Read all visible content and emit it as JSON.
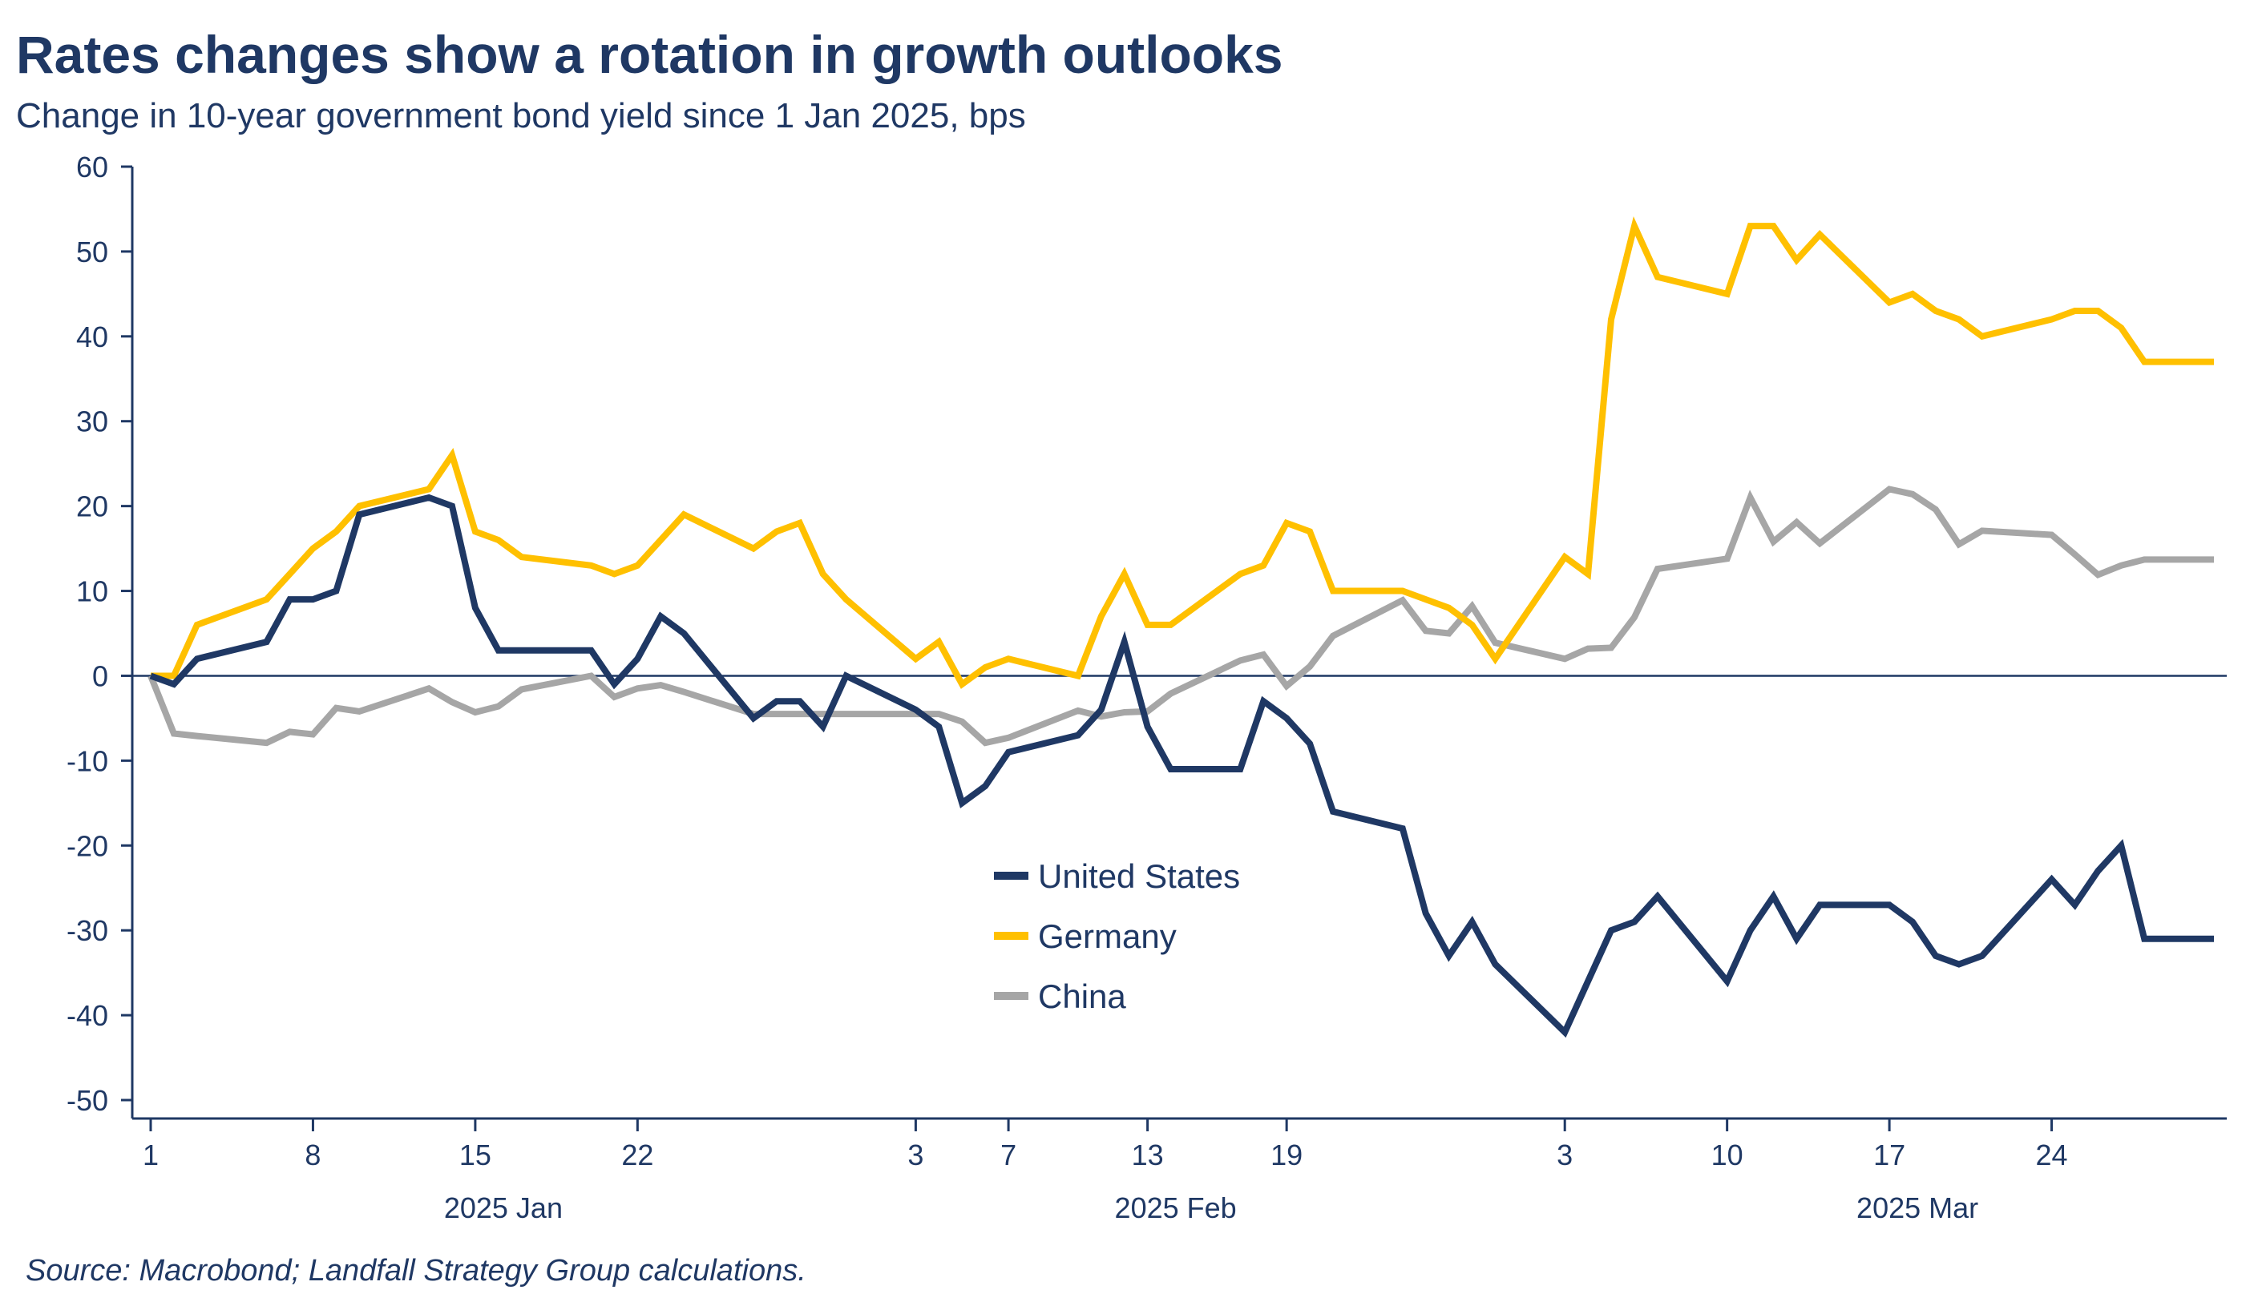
{
  "title": "Rates changes show a rotation in growth outlooks",
  "subtitle": "Change in 10-year government bond yield since 1 Jan 2025, bps",
  "source": "Source: Macrobond; Landfall Strategy Group calculations.",
  "colors": {
    "united_states": "#1f3864",
    "germany": "#ffc000",
    "china": "#a6a6a6",
    "text": "#1f3864",
    "axis": "#1f3864"
  },
  "chart_data": {
    "type": "line",
    "title": "Rates changes show a rotation in growth outlooks",
    "subtitle": "Change in 10-year government bond yield since 1 Jan 2025, bps",
    "ylim": [
      -50,
      60
    ],
    "yticks": [
      60,
      50,
      40,
      30,
      20,
      10,
      0,
      -10,
      -20,
      -30,
      -40,
      -50
    ],
    "xlim": [
      "2025-01-01",
      "2025-03-31"
    ],
    "xticks": [
      {
        "date": "2025-01-01",
        "label": "1"
      },
      {
        "date": "2025-01-08",
        "label": "8"
      },
      {
        "date": "2025-01-15",
        "label": "15"
      },
      {
        "date": "2025-01-22",
        "label": "22"
      },
      {
        "date": "2025-02-03",
        "label": "3"
      },
      {
        "date": "2025-02-07",
        "label": "7"
      },
      {
        "date": "2025-02-13",
        "label": "13"
      },
      {
        "date": "2025-02-19",
        "label": "19"
      },
      {
        "date": "2025-03-03",
        "label": "3"
      },
      {
        "date": "2025-03-10",
        "label": "10"
      },
      {
        "date": "2025-03-17",
        "label": "17"
      },
      {
        "date": "2025-03-24",
        "label": "24"
      }
    ],
    "month_labels": [
      {
        "date": "2025-01-15",
        "label": "2025 Jan"
      },
      {
        "date": "2025-02-13",
        "label": "2025 Feb"
      },
      {
        "date": "2025-03-17",
        "label": "2025 Mar"
      }
    ],
    "zero_line": true,
    "grid": false,
    "legend_position": "center-bottom",
    "x": [
      "2025-01-01",
      "2025-01-02",
      "2025-01-03",
      "2025-01-06",
      "2025-01-07",
      "2025-01-08",
      "2025-01-09",
      "2025-01-10",
      "2025-01-13",
      "2025-01-14",
      "2025-01-15",
      "2025-01-16",
      "2025-01-17",
      "2025-01-20",
      "2025-01-21",
      "2025-01-22",
      "2025-01-23",
      "2025-01-24",
      "2025-01-27",
      "2025-01-28",
      "2025-01-29",
      "2025-01-30",
      "2025-01-31",
      "2025-02-03",
      "2025-02-04",
      "2025-02-05",
      "2025-02-06",
      "2025-02-07",
      "2025-02-10",
      "2025-02-11",
      "2025-02-12",
      "2025-02-13",
      "2025-02-14",
      "2025-02-17",
      "2025-02-18",
      "2025-02-19",
      "2025-02-20",
      "2025-02-21",
      "2025-02-24",
      "2025-02-25",
      "2025-02-26",
      "2025-02-27",
      "2025-02-28",
      "2025-03-03",
      "2025-03-04",
      "2025-03-05",
      "2025-03-06",
      "2025-03-07",
      "2025-03-10",
      "2025-03-11",
      "2025-03-12",
      "2025-03-13",
      "2025-03-14",
      "2025-03-17",
      "2025-03-18",
      "2025-03-19",
      "2025-03-20",
      "2025-03-21",
      "2025-03-24",
      "2025-03-25",
      "2025-03-26",
      "2025-03-27",
      "2025-03-28",
      "2025-03-31"
    ],
    "series": [
      {
        "name": "United States",
        "color": "#1f3864",
        "values": [
          0,
          -1,
          2,
          4,
          9,
          9,
          10,
          19,
          21,
          20,
          8,
          3,
          3,
          3,
          -1,
          2,
          7,
          5,
          -5,
          -3,
          -3,
          -6,
          0,
          -4,
          -6,
          -15,
          -13,
          -9,
          -7,
          -4,
          4,
          -6,
          -11,
          -11,
          -3,
          -5,
          -8,
          -16,
          -18,
          -28,
          -33,
          -29,
          -34,
          -42,
          -36,
          -30,
          -29,
          -26,
          -36,
          -30,
          -26,
          -31,
          -27,
          -27,
          -29,
          -33,
          -34,
          -33,
          -24,
          -27,
          -23,
          -20,
          -31,
          -31
        ]
      },
      {
        "name": "Germany",
        "color": "#ffc000",
        "values": [
          0,
          0,
          6,
          9,
          12,
          15,
          17,
          20,
          22,
          26,
          17,
          16,
          14,
          13,
          12,
          13,
          16,
          19,
          15,
          17,
          18,
          12,
          9,
          2,
          4,
          -1,
          1,
          2,
          0,
          7,
          12,
          6,
          6,
          12,
          13,
          18,
          17,
          10,
          10,
          9,
          8,
          6,
          2,
          14,
          12,
          42,
          53,
          47,
          45,
          53,
          53,
          49,
          52,
          44,
          45,
          43,
          42,
          40,
          42,
          43,
          43,
          41,
          37,
          37
        ]
      },
      {
        "name": "China",
        "color": "#a6a6a6",
        "values": [
          0,
          -6.8,
          -7.1,
          -7.9,
          -6.6,
          -6.9,
          -3.8,
          -4.2,
          -1.5,
          -3.1,
          -4.3,
          -3.6,
          -1.6,
          0,
          -2.5,
          -1.5,
          -1.1,
          -1.9,
          -4.5,
          -4.5,
          -4.5,
          -4.5,
          -4.5,
          -4.5,
          -4.5,
          -5.4,
          -7.9,
          -7.3,
          -4.1,
          -4.8,
          -4.3,
          -4.2,
          -2.1,
          1.8,
          2.5,
          -1.2,
          1.1,
          4.7,
          8.9,
          5.3,
          5.0,
          8.2,
          3.9,
          2.0,
          3.2,
          3.3,
          6.9,
          12.6,
          13.8,
          21.0,
          15.8,
          18.1,
          15.6,
          22.0,
          21.4,
          19.6,
          15.5,
          17.1,
          16.6,
          14.3,
          11.9,
          13.0,
          13.7,
          13.7
        ]
      }
    ]
  }
}
